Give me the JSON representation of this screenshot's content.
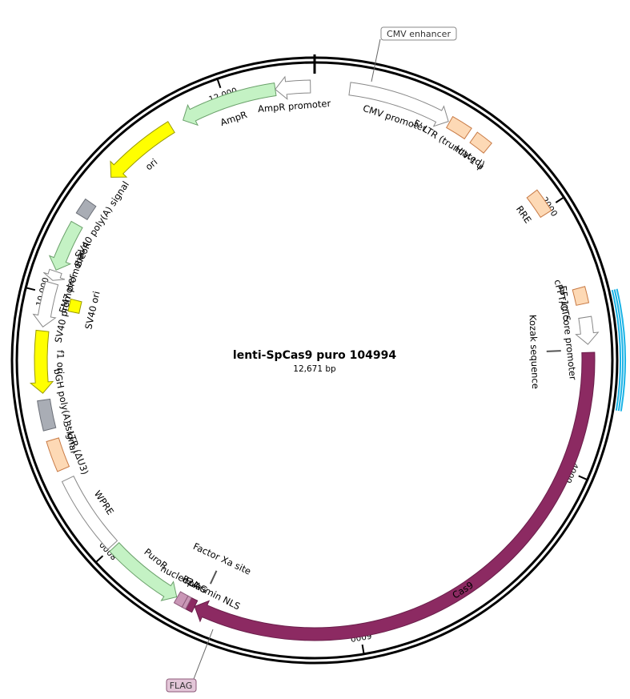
{
  "map": {
    "title": "lenti-SpCas9 puro 104994",
    "size_label": "12,671 bp",
    "total_bp": 12671,
    "ticks": [
      {
        "bp": 2000,
        "label": "2000"
      },
      {
        "bp": 4000,
        "label": "4000"
      },
      {
        "bp": 6000,
        "label": "6000"
      },
      {
        "bp": 8000,
        "label": "8000"
      },
      {
        "bp": 10000,
        "label": "10,000"
      },
      {
        "bp": 12000,
        "label": "12,000"
      }
    ],
    "highlight": {
      "start": 2700,
      "end": 3500,
      "color": "#1ab3e6"
    },
    "features": [
      {
        "name": "CMV promoter",
        "start": 260,
        "end": 1030,
        "dir": 1,
        "fill": "#ffffff",
        "stroke": "#888888",
        "type": "arrow",
        "label": "CMV promoter"
      },
      {
        "name": "5' LTR (truncated)",
        "start": 1040,
        "end": 1200,
        "dir": 0,
        "fill": "#fdd9b5",
        "stroke": "#c87a45",
        "type": "box",
        "label": "5' LTR (truncated)"
      },
      {
        "name": "HIV-1 psi",
        "start": 1250,
        "end": 1380,
        "dir": 0,
        "fill": "#fdd9b5",
        "stroke": "#c87a45",
        "type": "box",
        "label": "HIV-1 ψ"
      },
      {
        "name": "RRE",
        "start": 1850,
        "end": 2030,
        "dir": 0,
        "fill": "#fdd9b5",
        "stroke": "#c87a45",
        "type": "box",
        "label": "RRE"
      },
      {
        "name": "cPPT/CTS",
        "start": 2630,
        "end": 2750,
        "dir": 0,
        "fill": "#fdd9b5",
        "stroke": "#c87a45",
        "type": "box",
        "label": "cPPT/CTS"
      },
      {
        "name": "EF-1a core promoter",
        "start": 2850,
        "end": 3050,
        "dir": 1,
        "fill": "#ffffff",
        "stroke": "#888888",
        "type": "arrow",
        "label": "EF-1α core promoter"
      },
      {
        "name": "Cas9",
        "start": 3110,
        "end": 7250,
        "dir": 1,
        "fill": "#8c2a62",
        "stroke": "#6a1e4a",
        "type": "arrow",
        "label": "Cas9"
      },
      {
        "name": "nucleoplasmin NLS",
        "start": 7250,
        "end": 7300,
        "dir": 0,
        "fill": "#8c2a62",
        "stroke": "#6a1e4a",
        "type": "box",
        "label": "nucleoplasmin NLS"
      },
      {
        "name": "FLAG",
        "start": 7300,
        "end": 7330,
        "dir": 0,
        "fill": "#c996b6",
        "stroke": "#8c5a7a",
        "type": "box",
        "label": "FLAG"
      },
      {
        "name": "P2A",
        "start": 7330,
        "end": 7395,
        "dir": 0,
        "fill": "#c996b6",
        "stroke": "#8c5a7a",
        "type": "box",
        "label": "P2A"
      },
      {
        "name": "PuroR",
        "start": 7400,
        "end": 7990,
        "dir": -1,
        "fill": "#c4f2c4",
        "stroke": "#6aa06a",
        "type": "arrow",
        "label": "PuroR"
      },
      {
        "name": "WPRE",
        "start": 8010,
        "end": 8600,
        "dir": 0,
        "fill": "#ffffff",
        "stroke": "#888888",
        "type": "box",
        "label": "WPRE"
      },
      {
        "name": "3' LTR (dU3)",
        "start": 8680,
        "end": 8910,
        "dir": 0,
        "fill": "#fdd9b5",
        "stroke": "#c87a45",
        "type": "box",
        "label": "3' LTR (ΔU3)"
      },
      {
        "name": "bGH poly(A) signal",
        "start": 8990,
        "end": 9210,
        "dir": 0,
        "fill": "#a9adb5",
        "stroke": "#6b6f77",
        "type": "box",
        "label": "bGH poly(A) signal"
      },
      {
        "name": "f1 ori",
        "start": 9260,
        "end": 9720,
        "dir": -1,
        "fill": "#ffff00",
        "stroke": "#999900",
        "type": "arrow",
        "label": "f1 ori"
      },
      {
        "name": "SV40 promoter",
        "start": 9750,
        "end": 10080,
        "dir": -1,
        "fill": "#ffffff",
        "stroke": "#888888",
        "type": "arrow",
        "label": "SV40 promoter"
      },
      {
        "name": "EM7 promoter",
        "start": 10100,
        "end": 10170,
        "dir": -1,
        "fill": "#ffffff",
        "stroke": "#888888",
        "type": "arrow",
        "label": "EM7 promoter"
      },
      {
        "name": "BleoR",
        "start": 10180,
        "end": 10550,
        "dir": -1,
        "fill": "#c4f2c4",
        "stroke": "#6aa06a",
        "type": "arrow",
        "label": "BleoR"
      },
      {
        "name": "SV40 poly(A) signal",
        "start": 10620,
        "end": 10740,
        "dir": 0,
        "fill": "#a9adb5",
        "stroke": "#6b6f77",
        "type": "box",
        "label": "SV40 poly(A) signal"
      },
      {
        "name": "ori",
        "start": 10980,
        "end": 11560,
        "dir": -1,
        "fill": "#ffff00",
        "stroke": "#999900",
        "type": "arrow",
        "label": "ori"
      },
      {
        "name": "AmpR",
        "start": 11660,
        "end": 12380,
        "dir": -1,
        "fill": "#c4f2c4",
        "stroke": "#6aa06a",
        "type": "arrow",
        "label": "AmpR"
      },
      {
        "name": "AmpR promoter",
        "start": 12380,
        "end": 12640,
        "dir": -1,
        "fill": "#ffffff",
        "stroke": "#888888",
        "type": "arrow",
        "label": "AmpR promoter"
      },
      {
        "name": "SV40 ori",
        "start": 9900,
        "end": 10000,
        "dir": 0,
        "fill": "#ffff00",
        "stroke": "#999900",
        "type": "box",
        "label": "SV40 ori"
      },
      {
        "name": "Kozak sequence",
        "start": 3080,
        "end": 3100,
        "dir": 0,
        "fill": "#888888",
        "stroke": "#555555",
        "type": "tick",
        "label": "Kozak sequence"
      },
      {
        "name": "Factor Xa site",
        "start": 7200,
        "end": 7230,
        "dir": 0,
        "fill": "#888888",
        "stroke": "#555555",
        "type": "tick",
        "label": "Factor Xa site"
      },
      {
        "name": "CMV enhancer",
        "start": 0,
        "end": 260,
        "dir": 0,
        "fill": "#ffffff",
        "stroke": "#888888",
        "type": "callout",
        "label": "CMV enhancer"
      }
    ],
    "callouts": [
      {
        "name": "cmv-enhancer-callout",
        "text": "CMV enhancer",
        "fill": "#ffffff",
        "stroke": "#888888"
      },
      {
        "name": "flag-callout",
        "text": "FLAG",
        "fill": "#e3c6d8",
        "stroke": "#8c5a7a"
      }
    ]
  }
}
